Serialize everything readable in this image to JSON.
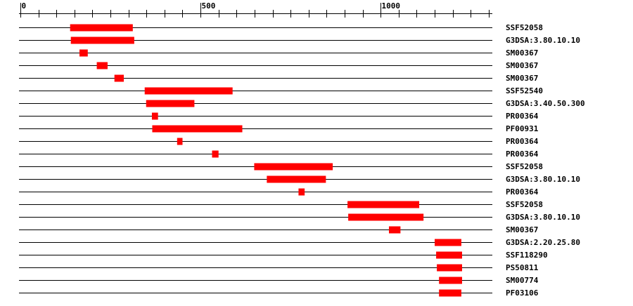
{
  "chart_data": {
    "type": "range",
    "xlim": [
      0,
      1310
    ],
    "xticks": [
      0,
      500,
      1000
    ],
    "minor_xticks": [
      50,
      100,
      150,
      200,
      250,
      300,
      350,
      400,
      450,
      550,
      600,
      650,
      700,
      750,
      800,
      850,
      900,
      950,
      1050,
      1100,
      1150,
      1200,
      1250,
      1300
    ],
    "color": "#ff0000",
    "rows": [
      {
        "label": "SSF52058",
        "start": 138,
        "end": 312
      },
      {
        "label": "G3DSA:3.80.10.10",
        "start": 140,
        "end": 316
      },
      {
        "label": "SM00367",
        "start": 164,
        "end": 187
      },
      {
        "label": "SM00367",
        "start": 212,
        "end": 242
      },
      {
        "label": "SM00367",
        "start": 261,
        "end": 287
      },
      {
        "label": "SSF52540",
        "start": 345,
        "end": 589
      },
      {
        "label": "G3DSA:3.40.50.300",
        "start": 349,
        "end": 483
      },
      {
        "label": "PR00364",
        "start": 365,
        "end": 382
      },
      {
        "label": "PF00931",
        "start": 366,
        "end": 616
      },
      {
        "label": "PR00364",
        "start": 435,
        "end": 450
      },
      {
        "label": "PR00364",
        "start": 532,
        "end": 550
      },
      {
        "label": "SSF52058",
        "start": 649,
        "end": 867
      },
      {
        "label": "G3DSA:3.80.10.10",
        "start": 684,
        "end": 848
      },
      {
        "label": "PR00364",
        "start": 772,
        "end": 789
      },
      {
        "label": "SSF52058",
        "start": 908,
        "end": 1107
      },
      {
        "label": "G3DSA:3.80.10.10",
        "start": 910,
        "end": 1119
      },
      {
        "label": "SM00367",
        "start": 1023,
        "end": 1055
      },
      {
        "label": "G3DSA:2.20.25.80",
        "start": 1150,
        "end": 1224
      },
      {
        "label": "SSF118290",
        "start": 1154,
        "end": 1226
      },
      {
        "label": "PS50811",
        "start": 1156,
        "end": 1226
      },
      {
        "label": "SM00774",
        "start": 1162,
        "end": 1226
      },
      {
        "label": "PF03106",
        "start": 1162,
        "end": 1224
      }
    ]
  }
}
